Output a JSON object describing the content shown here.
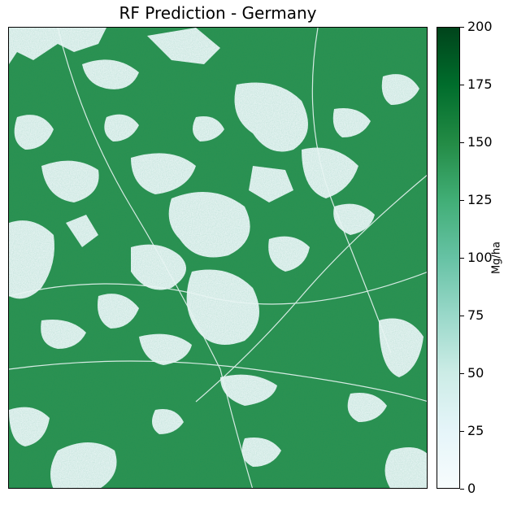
{
  "title": "RF Prediction - Germany",
  "colorbar": {
    "unit_label": "Mg/ha",
    "min": 0,
    "max": 200,
    "ticks": [
      "0",
      "25",
      "50",
      "75",
      "100",
      "125",
      "150",
      "175",
      "200"
    ],
    "colormap": "BuGn",
    "colors": [
      "#f7fcfd",
      "#e5f5f9",
      "#ccece6",
      "#99d8c9",
      "#66c2a4",
      "#41ae76",
      "#238b45",
      "#006d2c",
      "#00441b"
    ]
  },
  "map": {
    "background_low_value_color": "#f7fcfd",
    "forest_color": "#2f9251",
    "typical_forest_value": 140
  }
}
